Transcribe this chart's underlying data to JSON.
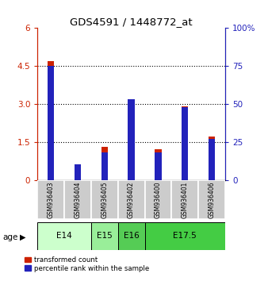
{
  "title": "GDS4591 / 1448772_at",
  "samples": [
    "GSM936403",
    "GSM936404",
    "GSM936405",
    "GSM936402",
    "GSM936400",
    "GSM936401",
    "GSM936406"
  ],
  "transformed_count": [
    4.7,
    0.1,
    1.3,
    3.2,
    1.2,
    2.9,
    1.7
  ],
  "percentile_rank": [
    75,
    10,
    18,
    53,
    18,
    48,
    27
  ],
  "age_groups": [
    {
      "label": "E14",
      "span": [
        0,
        1
      ],
      "color": "#ccffcc"
    },
    {
      "label": "E15",
      "span": [
        2,
        2
      ],
      "color": "#99ee99"
    },
    {
      "label": "E16",
      "span": [
        3,
        3
      ],
      "color": "#55cc55"
    },
    {
      "label": "E17.5",
      "span": [
        4,
        6
      ],
      "color": "#44cc44"
    }
  ],
  "left_yticks": [
    0,
    1.5,
    3.0,
    4.5,
    6
  ],
  "right_yticks": [
    0,
    25,
    50,
    75,
    100
  ],
  "left_ylim": [
    0,
    6
  ],
  "right_ylim": [
    0,
    100
  ],
  "red_color": "#cc2200",
  "blue_color": "#2222bb",
  "bg_color": "#ffffff",
  "sample_bg": "#cccccc",
  "age_label": "age"
}
